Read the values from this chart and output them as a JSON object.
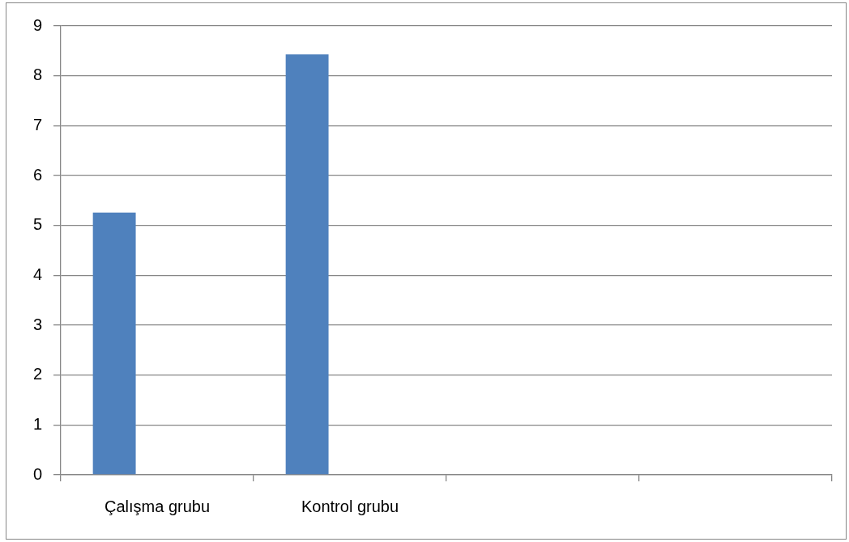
{
  "chart_data": {
    "type": "bar",
    "categories": [
      "Çalışma grubu",
      "Kontrol grubu",
      null,
      null
    ],
    "values": [
      5.26,
      8.43,
      null,
      null
    ],
    "color": "#4f81bd",
    "ylim": [
      0,
      9
    ],
    "yticks": [
      0,
      1,
      2,
      3,
      4,
      5,
      6,
      7,
      8,
      9
    ],
    "grid": "y"
  }
}
